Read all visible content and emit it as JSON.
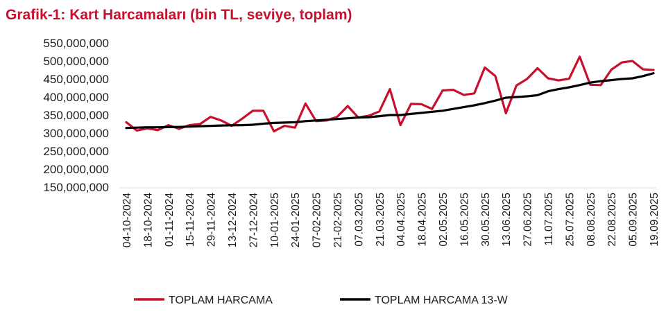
{
  "chart_data": {
    "type": "line",
    "title": "Grafik-1: Kart Harcamaları (bin TL, seviye, toplam)",
    "xlabel": "",
    "ylabel": "",
    "ylim": [
      150000000,
      550000000
    ],
    "yticks": [
      "550,000,000",
      "500,000,000",
      "450,000,000",
      "400,000,000",
      "350,000,000",
      "300,000,000",
      "250,000,000",
      "200,000,000",
      "150,000,000"
    ],
    "xtick_labels": [
      "04-10-2024",
      "18-10-2024",
      "01-11-2024",
      "15-11-2024",
      "29-11-2024",
      "13-12-2024",
      "27-12-2024",
      "10-01-2025",
      "24-01-2025",
      "07-02-2025",
      "21-02-2025",
      "07.03.2025",
      "21.03.2025",
      "04.04.2025",
      "18.04.2025",
      "02.05.2025",
      "16.05.2025",
      "30.05.2025",
      "13.06.2025",
      "27.06.2025",
      "11.07.2025",
      "25.07.2025",
      "08.08.2025",
      "22.08.2025",
      "05.09.2025",
      "19.09.2025"
    ],
    "grid": false,
    "legend_position": "bottom",
    "series": [
      {
        "name": "TOPLAM HARCAMA",
        "color": "#c8102e",
        "values": [
          330000000,
          307000000,
          313000000,
          308000000,
          322000000,
          312000000,
          322000000,
          325000000,
          345000000,
          335000000,
          320000000,
          340000000,
          362000000,
          362000000,
          305000000,
          320000000,
          315000000,
          382000000,
          333000000,
          335000000,
          345000000,
          375000000,
          343000000,
          348000000,
          360000000,
          422000000,
          322000000,
          381000000,
          380000000,
          367000000,
          418000000,
          420000000,
          406000000,
          410000000,
          482000000,
          458000000,
          355000000,
          432000000,
          450000000,
          480000000,
          452000000,
          446000000,
          451000000,
          512000000,
          434000000,
          433000000,
          476000000,
          496000000,
          500000000,
          477000000,
          475000000
        ]
      },
      {
        "name": "TOPLAM HARCAMA 13-W",
        "color": "#000000",
        "values": [
          314000000,
          315000000,
          316000000,
          316000000,
          316500000,
          317000000,
          318000000,
          319000000,
          320000000,
          321000000,
          321500000,
          322000000,
          323000000,
          326000000,
          328000000,
          329000000,
          330000000,
          333000000,
          335000000,
          337000000,
          339000000,
          341000000,
          343000000,
          344000000,
          347000000,
          350000000,
          350000000,
          353000000,
          356000000,
          359000000,
          362000000,
          367000000,
          372000000,
          377000000,
          383000000,
          390000000,
          398000000,
          400000000,
          402000000,
          405000000,
          416000000,
          422000000,
          427000000,
          433000000,
          440000000,
          444000000,
          447000000,
          450000000,
          452000000,
          458000000,
          466000000
        ]
      }
    ]
  }
}
